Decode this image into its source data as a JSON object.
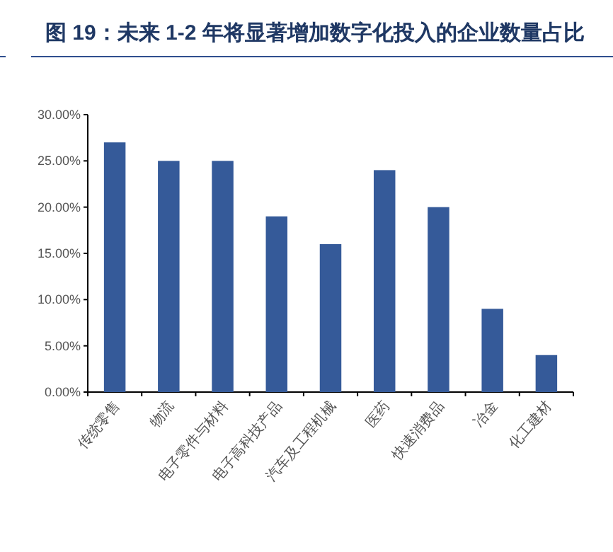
{
  "chart_data": {
    "type": "bar",
    "title": "图 19：未来 1-2 年将显著增加数字化投入的企业数量占比",
    "categories": [
      "传统零售",
      "物流",
      "电子零件与材料",
      "电子高科技产品",
      "汽车及工程机械",
      "医药",
      "快速消费品",
      "冶金",
      "化工建材"
    ],
    "values": [
      27,
      25,
      25,
      19,
      16,
      24,
      20,
      9,
      4
    ],
    "color": "#355a99",
    "ylim": [
      0,
      30
    ],
    "yticks": [
      {
        "value": 0,
        "label": "0.00%"
      },
      {
        "value": 5,
        "label": "5.00%"
      },
      {
        "value": 10,
        "label": "10.00%"
      },
      {
        "value": 15,
        "label": "15.00%"
      },
      {
        "value": 20,
        "label": "20.00%"
      },
      {
        "value": 25,
        "label": "25.00%"
      },
      {
        "value": 30,
        "label": "30.00%"
      }
    ]
  }
}
